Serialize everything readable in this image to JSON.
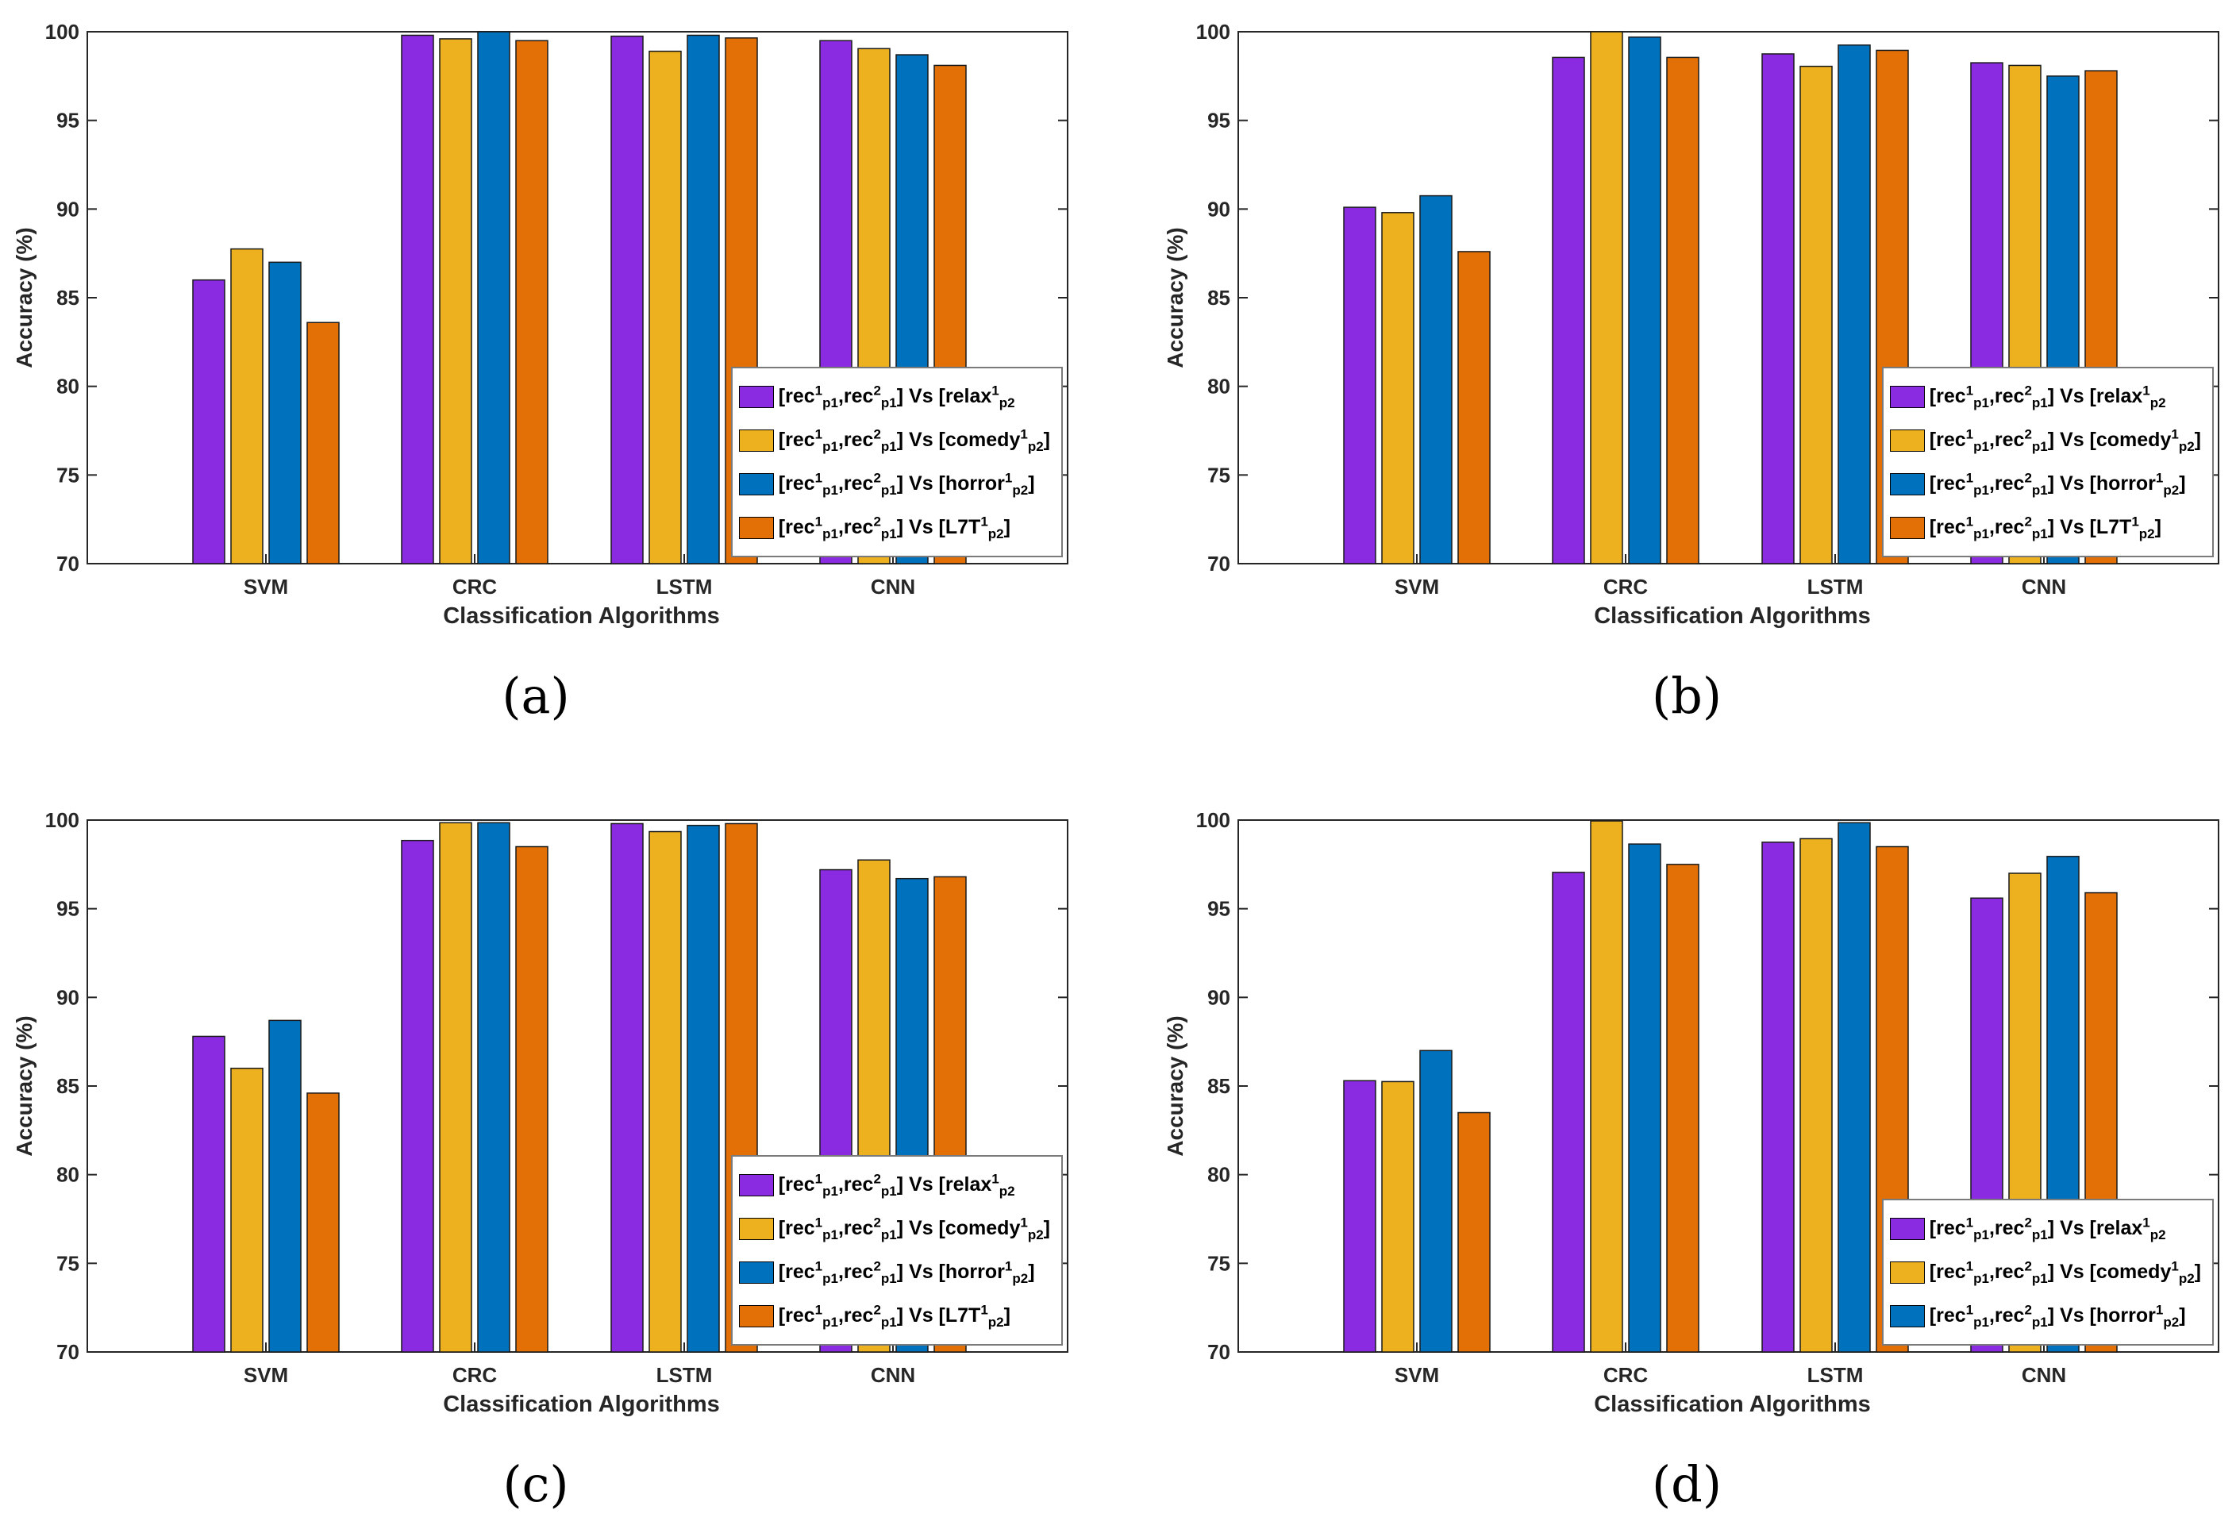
{
  "colors": {
    "relax": "#8a2be2",
    "comedy": "#edb120",
    "horror": "#0072bd",
    "l7t": "#e37007"
  },
  "legend_labels": {
    "relax": {
      "prefix": "[rec",
      "s1": "1",
      "b1": "p1",
      "mid": ",rec",
      "s2": "2",
      "b2": "p1",
      "vs": "] Vs [relax",
      "s3": "1",
      "b3": "p2",
      "end": ""
    },
    "comedy": {
      "prefix": "[rec",
      "s1": "1",
      "b1": "p1",
      "mid": ",rec",
      "s2": "2",
      "b2": "p1",
      "vs": "] Vs [comedy",
      "s3": "1",
      "b3": "p2",
      "end": "]"
    },
    "horror": {
      "prefix": "[rec",
      "s1": "1",
      "b1": "p1",
      "mid": ",rec",
      "s2": "2",
      "b2": "p1",
      "vs": "] Vs [horror",
      "s3": "1",
      "b3": "p2",
      "end": "]"
    },
    "l7t": {
      "prefix": "[rec",
      "s1": "1",
      "b1": "p1",
      "mid": ",rec",
      "s2": "2",
      "b2": "p1",
      "vs": "] Vs [L7T",
      "s3": "1",
      "b3": "p2",
      "end": "]"
    }
  },
  "chart_data": [
    {
      "type": "bar",
      "caption": "(a)",
      "categories": [
        "SVM",
        "CRC",
        "LSTM",
        "CNN"
      ],
      "xlabel": "Classification Algorithms",
      "ylabel": "Accuracy (%)",
      "ylim": [
        70,
        100
      ],
      "yticks": [
        70,
        75,
        80,
        85,
        90,
        95,
        100
      ],
      "legend_position": "bottom-right",
      "series": [
        {
          "key": "relax",
          "values": [
            86.0,
            99.8,
            99.75,
            99.5
          ]
        },
        {
          "key": "comedy",
          "values": [
            87.75,
            99.6,
            98.9,
            99.05
          ]
        },
        {
          "key": "horror",
          "values": [
            87.0,
            100.0,
            99.8,
            98.7
          ]
        },
        {
          "key": "l7t",
          "values": [
            83.6,
            99.5,
            99.65,
            98.1
          ]
        }
      ]
    },
    {
      "type": "bar",
      "caption": "(b)",
      "categories": [
        "SVM",
        "CRC",
        "LSTM",
        "CNN"
      ],
      "xlabel": "Classification Algorithms",
      "ylabel": "Accuracy (%)",
      "ylim": [
        70,
        100
      ],
      "yticks": [
        70,
        75,
        80,
        85,
        90,
        95,
        100
      ],
      "legend_position": "bottom-right",
      "series": [
        {
          "key": "relax",
          "values": [
            90.1,
            98.55,
            98.75,
            98.25
          ]
        },
        {
          "key": "comedy",
          "values": [
            89.8,
            100.0,
            98.05,
            98.1
          ]
        },
        {
          "key": "horror",
          "values": [
            90.75,
            99.7,
            99.25,
            97.5
          ]
        },
        {
          "key": "l7t",
          "values": [
            87.6,
            98.55,
            98.95,
            97.8
          ]
        }
      ]
    },
    {
      "type": "bar",
      "caption": "(c)",
      "categories": [
        "SVM",
        "CRC",
        "LSTM",
        "CNN"
      ],
      "xlabel": "Classification Algorithms",
      "ylabel": "Accuracy (%)",
      "ylim": [
        70,
        100
      ],
      "yticks": [
        70,
        75,
        80,
        85,
        90,
        95,
        100
      ],
      "legend_position": "bottom-right",
      "series": [
        {
          "key": "relax",
          "values": [
            87.8,
            98.85,
            99.8,
            97.2
          ]
        },
        {
          "key": "comedy",
          "values": [
            86.0,
            99.85,
            99.35,
            97.75
          ]
        },
        {
          "key": "horror",
          "values": [
            88.7,
            99.85,
            99.7,
            96.7
          ]
        },
        {
          "key": "l7t",
          "values": [
            84.6,
            98.5,
            99.8,
            96.8
          ]
        }
      ]
    },
    {
      "type": "bar",
      "caption": "(d)",
      "categories": [
        "SVM",
        "CRC",
        "LSTM",
        "CNN"
      ],
      "xlabel": "Classification Algorithms",
      "ylabel": "Accuracy (%)",
      "ylim": [
        70,
        100
      ],
      "yticks": [
        70,
        75,
        80,
        85,
        90,
        95,
        100
      ],
      "legend_position": "bottom-right",
      "legend_keys": [
        "relax",
        "comedy",
        "horror"
      ],
      "series": [
        {
          "key": "relax",
          "values": [
            85.3,
            97.05,
            98.75,
            95.6
          ]
        },
        {
          "key": "comedy",
          "values": [
            85.25,
            99.95,
            98.95,
            97.0
          ]
        },
        {
          "key": "horror",
          "values": [
            87.0,
            98.65,
            99.85,
            97.95
          ]
        },
        {
          "key": "l7t",
          "values": [
            83.5,
            97.5,
            98.5,
            95.9
          ]
        }
      ]
    }
  ]
}
